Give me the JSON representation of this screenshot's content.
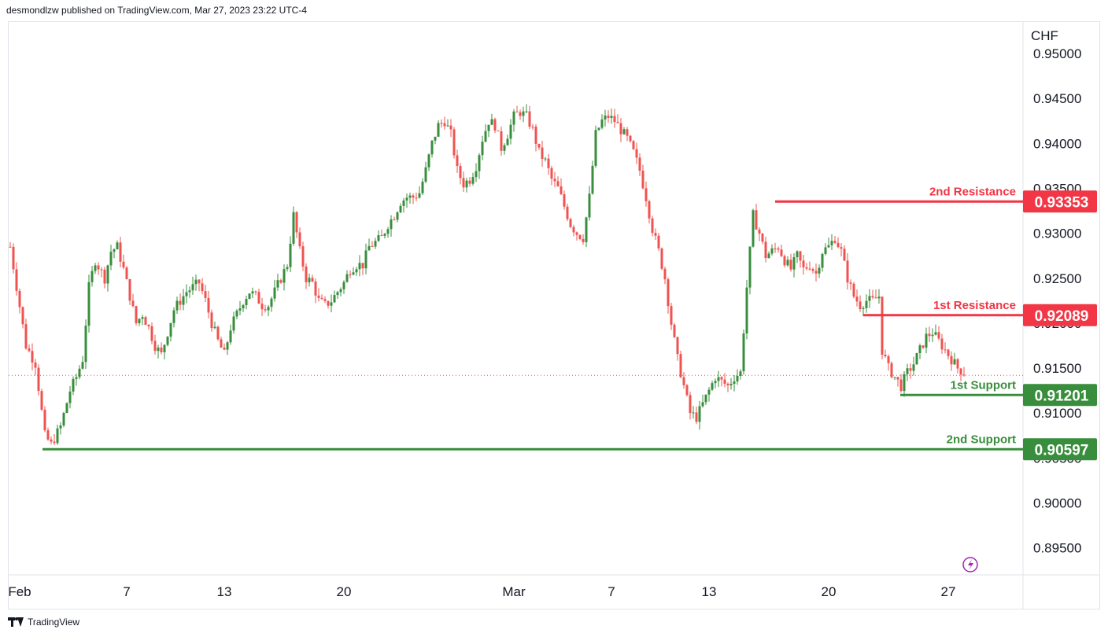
{
  "header": {
    "text": "desmondlzw published on TradingView.com, Mar 27, 2023 23:22 UTC-4"
  },
  "footer": {
    "brand": "TradingView",
    "logo_icon": "tradingview-logo-icon"
  },
  "colors": {
    "up": "#388e3c",
    "down": "#ef5350",
    "resistance": "#f23645",
    "support": "#388e3c",
    "axis_text": "#131722",
    "grid_border": "#e0e3eb",
    "flash_icon": "#9c27b0"
  },
  "chart_data": {
    "type": "candlestick",
    "symbol_currency": "CHF",
    "ylim": [
      0.892,
      0.9535
    ],
    "y_ticks": [
      "0.95000",
      "0.94500",
      "0.94000",
      "0.93500",
      "0.93000",
      "0.92500",
      "0.92000",
      "0.91500",
      "0.91000",
      "0.90500",
      "0.90000",
      "0.89500"
    ],
    "x_ticks": [
      "Feb",
      "7",
      "13",
      "20",
      "Mar",
      "7",
      "13",
      "20",
      "27"
    ],
    "last_price": 0.9142,
    "levels": [
      {
        "label": "2nd Resistance",
        "value": "0.93353",
        "kind": "resistance"
      },
      {
        "label": "1st Resistance",
        "value": "0.92089",
        "kind": "resistance"
      },
      {
        "label": "1st Support",
        "value": "0.91201",
        "kind": "support"
      },
      {
        "label": "2nd Support",
        "value": "0.90597",
        "kind": "support"
      }
    ],
    "path": [
      [
        0,
        0.9285
      ],
      [
        5,
        0.9175
      ],
      [
        8,
        0.9155
      ],
      [
        11,
        0.9075
      ],
      [
        13,
        0.9065
      ],
      [
        16,
        0.9085
      ],
      [
        19,
        0.9125
      ],
      [
        21,
        0.914
      ],
      [
        23,
        0.916
      ],
      [
        25,
        0.924
      ],
      [
        27,
        0.927
      ],
      [
        30,
        0.925
      ],
      [
        32,
        0.928
      ],
      [
        34,
        0.9285
      ],
      [
        36,
        0.926
      ],
      [
        38,
        0.923
      ],
      [
        40,
        0.92
      ],
      [
        42,
        0.921
      ],
      [
        44,
        0.9195
      ],
      [
        46,
        0.9175
      ],
      [
        48,
        0.9165
      ],
      [
        50,
        0.919
      ],
      [
        52,
        0.9215
      ],
      [
        54,
        0.9225
      ],
      [
        56,
        0.9235
      ],
      [
        58,
        0.924
      ],
      [
        60,
        0.9245
      ],
      [
        62,
        0.9225
      ],
      [
        64,
        0.92
      ],
      [
        66,
        0.918
      ],
      [
        68,
        0.9165
      ],
      [
        70,
        0.9195
      ],
      [
        72,
        0.921
      ],
      [
        74,
        0.9225
      ],
      [
        76,
        0.9235
      ],
      [
        78,
        0.923
      ],
      [
        80,
        0.922
      ],
      [
        82,
        0.922
      ],
      [
        84,
        0.9235
      ],
      [
        86,
        0.925
      ],
      [
        88,
        0.9265
      ],
      [
        90,
        0.932
      ],
      [
        92,
        0.928
      ],
      [
        94,
        0.925
      ],
      [
        96,
        0.9245
      ],
      [
        98,
        0.9225
      ],
      [
        100,
        0.922
      ],
      [
        102,
        0.9225
      ],
      [
        104,
        0.9235
      ],
      [
        106,
        0.9245
      ],
      [
        108,
        0.926
      ],
      [
        110,
        0.9265
      ],
      [
        112,
        0.9265
      ],
      [
        114,
        0.9285
      ],
      [
        116,
        0.929
      ],
      [
        118,
        0.9295
      ],
      [
        120,
        0.931
      ],
      [
        122,
        0.932
      ],
      [
        124,
        0.9335
      ],
      [
        126,
        0.934
      ],
      [
        128,
        0.934
      ],
      [
        130,
        0.9345
      ],
      [
        132,
        0.937
      ],
      [
        134,
        0.94
      ],
      [
        136,
        0.942
      ],
      [
        138,
        0.9425
      ],
      [
        140,
        0.941
      ],
      [
        142,
        0.937
      ],
      [
        144,
        0.9355
      ],
      [
        146,
        0.936
      ],
      [
        148,
        0.9375
      ],
      [
        150,
        0.9405
      ],
      [
        152,
        0.9425
      ],
      [
        154,
        0.942
      ],
      [
        156,
        0.9395
      ],
      [
        158,
        0.941
      ],
      [
        160,
        0.943
      ],
      [
        162,
        0.9435
      ],
      [
        164,
        0.943
      ],
      [
        166,
        0.9415
      ],
      [
        168,
        0.939
      ],
      [
        170,
        0.938
      ],
      [
        172,
        0.936
      ],
      [
        174,
        0.935
      ],
      [
        176,
        0.933
      ],
      [
        178,
        0.931
      ],
      [
        180,
        0.93
      ],
      [
        182,
        0.9295
      ],
      [
        184,
        0.934
      ],
      [
        186,
        0.941
      ],
      [
        188,
        0.9425
      ],
      [
        190,
        0.943
      ],
      [
        192,
        0.9425
      ],
      [
        194,
        0.9415
      ],
      [
        196,
        0.9405
      ],
      [
        198,
        0.939
      ],
      [
        200,
        0.937
      ],
      [
        202,
        0.934
      ],
      [
        204,
        0.9305
      ],
      [
        206,
        0.928
      ],
      [
        208,
        0.925
      ],
      [
        210,
        0.92
      ],
      [
        212,
        0.916
      ],
      [
        214,
        0.913
      ],
      [
        216,
        0.91
      ],
      [
        218,
        0.9095
      ],
      [
        220,
        0.911
      ],
      [
        222,
        0.9125
      ],
      [
        224,
        0.914
      ],
      [
        226,
        0.9135
      ],
      [
        228,
        0.913
      ],
      [
        230,
        0.914
      ],
      [
        232,
        0.9145
      ],
      [
        234,
        0.924
      ],
      [
        236,
        0.932
      ],
      [
        238,
        0.93
      ],
      [
        240,
        0.9275
      ],
      [
        242,
        0.928
      ],
      [
        244,
        0.9285
      ],
      [
        246,
        0.927
      ],
      [
        248,
        0.926
      ],
      [
        250,
        0.9275
      ],
      [
        252,
        0.926
      ],
      [
        254,
        0.9265
      ],
      [
        256,
        0.9255
      ],
      [
        258,
        0.928
      ],
      [
        260,
        0.9285
      ],
      [
        262,
        0.9295
      ],
      [
        264,
        0.928
      ],
      [
        266,
        0.925
      ],
      [
        268,
        0.923
      ],
      [
        270,
        0.922
      ],
      [
        272,
        0.9225
      ],
      [
        274,
        0.9225
      ],
      [
        276,
        0.923
      ],
      [
        277,
        0.917
      ],
      [
        279,
        0.915
      ],
      [
        281,
        0.914
      ],
      [
        283,
        0.913
      ],
      [
        285,
        0.9145
      ],
      [
        287,
        0.9155
      ],
      [
        289,
        0.917
      ],
      [
        291,
        0.9185
      ],
      [
        293,
        0.919
      ],
      [
        295,
        0.918
      ],
      [
        297,
        0.917
      ],
      [
        299,
        0.916
      ],
      [
        301,
        0.915
      ],
      [
        303,
        0.9145
      ]
    ]
  }
}
